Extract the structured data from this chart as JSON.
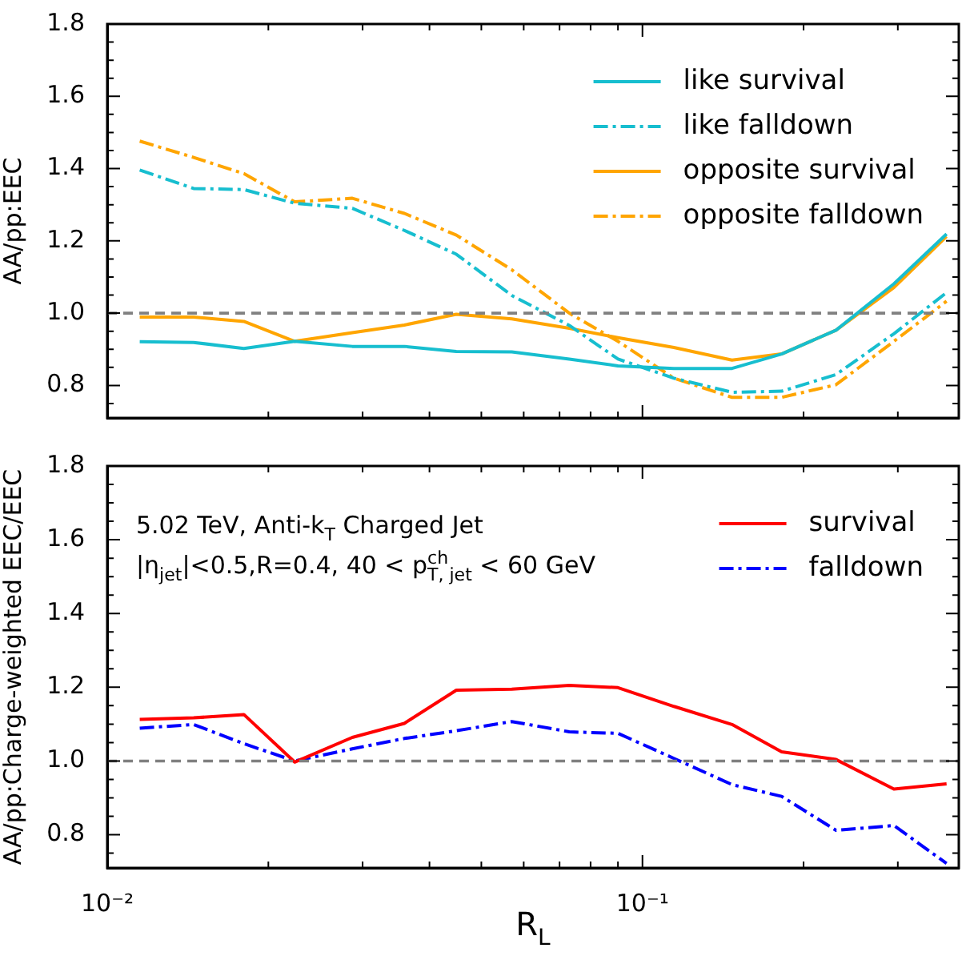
{
  "chart_data": [
    {
      "type": "line",
      "ylabel": "AA/pp:EEC",
      "log": "x",
      "tick_labels": "y",
      "legend": "top right",
      "x": [
        0.0115,
        0.0145,
        0.018,
        0.0224,
        0.0287,
        0.0359,
        0.0449,
        0.057,
        0.073,
        0.09,
        0.1145,
        0.147,
        0.182,
        0.23,
        0.295,
        0.37
      ],
      "xlim": [
        0.01,
        0.39
      ],
      "xticks": [
        {
          "value": 0.01,
          "label": null
        },
        {
          "value": 0.02,
          "label": null
        },
        {
          "value": 0.03,
          "label": null
        },
        {
          "value": 0.04,
          "label": null
        },
        {
          "value": 0.05,
          "label": null
        },
        {
          "value": 0.06,
          "label": null
        },
        {
          "value": 0.07,
          "label": null
        },
        {
          "value": 0.08,
          "label": null
        },
        {
          "value": 0.09,
          "label": null
        },
        {
          "value": 0.1,
          "label": null
        },
        {
          "value": 0.2,
          "label": null
        },
        {
          "value": 0.3,
          "label": null
        }
      ],
      "ylim": [
        0.71,
        1.8
      ],
      "yticks": [
        {
          "value": 0.75,
          "label": null
        },
        {
          "value": 0.8,
          "label": "0.8"
        },
        {
          "value": 0.85,
          "label": null
        },
        {
          "value": 0.9,
          "label": null
        },
        {
          "value": 0.95,
          "label": null
        },
        {
          "value": 1.0,
          "label": "1.0"
        },
        {
          "value": 1.05,
          "label": null
        },
        {
          "value": 1.1,
          "label": null
        },
        {
          "value": 1.15,
          "label": null
        },
        {
          "value": 1.2,
          "label": "1.2"
        },
        {
          "value": 1.25,
          "label": null
        },
        {
          "value": 1.3,
          "label": null
        },
        {
          "value": 1.35,
          "label": null
        },
        {
          "value": 1.4,
          "label": "1.4"
        },
        {
          "value": 1.45,
          "label": null
        },
        {
          "value": 1.5,
          "label": null
        },
        {
          "value": 1.55,
          "label": null
        },
        {
          "value": 1.6,
          "label": "1.6"
        },
        {
          "value": 1.65,
          "label": null
        },
        {
          "value": 1.7,
          "label": null
        },
        {
          "value": 1.75,
          "label": null
        },
        {
          "value": 1.8,
          "label": "1.8"
        }
      ],
      "ref_lines": [
        {
          "axis": "y",
          "value": 1.0,
          "color": "#808080",
          "line_style": "dashed"
        }
      ],
      "series": [
        {
          "name": "like survival",
          "color": "#17becf",
          "line_style": "solid",
          "values": [
            0.921,
            0.919,
            0.902,
            0.922,
            0.908,
            0.908,
            0.894,
            0.893,
            0.873,
            0.854,
            0.847,
            0.847,
            0.887,
            0.953,
            1.081,
            1.219
          ]
        },
        {
          "name": "like falldown",
          "color": "#17becf",
          "line_style": "dashdot",
          "values": [
            1.396,
            1.345,
            1.342,
            1.304,
            1.29,
            1.229,
            1.163,
            1.049,
            0.966,
            0.873,
            0.82,
            0.781,
            0.784,
            0.83,
            0.943,
            1.057
          ]
        },
        {
          "name": "opposite survival",
          "color": "#ffa500",
          "line_style": "solid",
          "values": [
            0.989,
            0.989,
            0.977,
            0.922,
            0.946,
            0.967,
            0.997,
            0.984,
            0.958,
            0.932,
            0.905,
            0.87,
            0.887,
            0.953,
            1.071,
            1.212
          ]
        },
        {
          "name": "opposite falldown",
          "color": "#ffa500",
          "line_style": "dashdot",
          "values": [
            1.476,
            1.431,
            1.386,
            1.308,
            1.318,
            1.276,
            1.216,
            1.12,
            1.0,
            0.922,
            0.82,
            0.767,
            0.767,
            0.802,
            0.922,
            1.033
          ]
        }
      ]
    },
    {
      "type": "line",
      "xlabel": "R$_{L}$",
      "ylabel": "AA/pp:Charge-weighted EEC/EEC",
      "log": "x",
      "legend": "top right",
      "annotations": [
        "5.02 TeV, Anti-k$_{T}$ Charged Jet",
        "|η$_{jet}$|<0.5,R=0.4, 40 < p$^{ch}$$_{T, jet}$ < 60 GeV"
      ],
      "x": [
        0.0115,
        0.0145,
        0.018,
        0.0224,
        0.0287,
        0.0359,
        0.0449,
        0.057,
        0.073,
        0.09,
        0.1145,
        0.147,
        0.182,
        0.23,
        0.295,
        0.37
      ],
      "xlim": [
        0.01,
        0.39
      ],
      "xticks": [
        {
          "value": 0.01,
          "label": "10⁻²"
        },
        {
          "value": 0.02,
          "label": null
        },
        {
          "value": 0.03,
          "label": null
        },
        {
          "value": 0.04,
          "label": null
        },
        {
          "value": 0.05,
          "label": null
        },
        {
          "value": 0.06,
          "label": null
        },
        {
          "value": 0.07,
          "label": null
        },
        {
          "value": 0.08,
          "label": null
        },
        {
          "value": 0.09,
          "label": null
        },
        {
          "value": 0.1,
          "label": "10⁻¹"
        },
        {
          "value": 0.2,
          "label": null
        },
        {
          "value": 0.3,
          "label": null
        }
      ],
      "ylim": [
        0.71,
        1.8
      ],
      "yticks": [
        {
          "value": 0.75,
          "label": null
        },
        {
          "value": 0.8,
          "label": "0.8"
        },
        {
          "value": 0.85,
          "label": null
        },
        {
          "value": 0.9,
          "label": null
        },
        {
          "value": 0.95,
          "label": null
        },
        {
          "value": 1.0,
          "label": "1.0"
        },
        {
          "value": 1.05,
          "label": null
        },
        {
          "value": 1.1,
          "label": null
        },
        {
          "value": 1.15,
          "label": null
        },
        {
          "value": 1.2,
          "label": "1.2"
        },
        {
          "value": 1.25,
          "label": null
        },
        {
          "value": 1.3,
          "label": null
        },
        {
          "value": 1.35,
          "label": null
        },
        {
          "value": 1.4,
          "label": "1.4"
        },
        {
          "value": 1.45,
          "label": null
        },
        {
          "value": 1.5,
          "label": null
        },
        {
          "value": 1.55,
          "label": null
        },
        {
          "value": 1.6,
          "label": "1.6"
        },
        {
          "value": 1.65,
          "label": null
        },
        {
          "value": 1.7,
          "label": null
        },
        {
          "value": 1.75,
          "label": null
        },
        {
          "value": 1.8,
          "label": "1.8"
        }
      ],
      "ref_lines": [
        {
          "axis": "y",
          "value": 1.0,
          "color": "#808080",
          "line_style": "dashed"
        }
      ],
      "series": [
        {
          "name": "survival",
          "color": "#ff0000",
          "line_style": "solid",
          "values": [
            1.113,
            1.117,
            1.126,
            0.997,
            1.064,
            1.102,
            1.192,
            1.195,
            1.205,
            1.199,
            1.148,
            1.099,
            1.025,
            1.004,
            0.924,
            0.938
          ]
        },
        {
          "name": "falldown",
          "color": "#0000ff",
          "line_style": "dashdot",
          "values": [
            1.089,
            1.099,
            1.047,
            1.0,
            1.033,
            1.061,
            1.082,
            1.107,
            1.079,
            1.075,
            1.007,
            0.936,
            0.904,
            0.812,
            0.825,
            0.722
          ]
        }
      ]
    }
  ]
}
